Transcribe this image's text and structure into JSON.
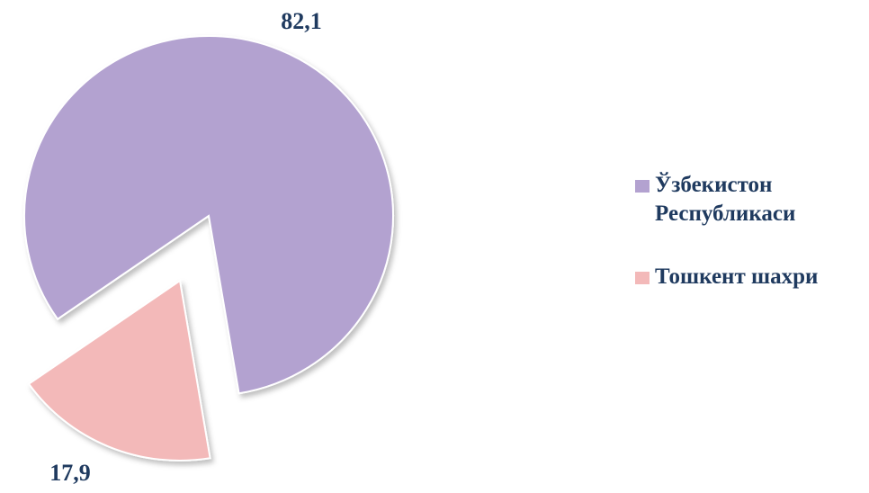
{
  "chart_data": {
    "type": "pie",
    "categories": [
      "Ўзбекистон Республикаси",
      "Тошкент шахри"
    ],
    "values": [
      82.1,
      17.9
    ],
    "value_labels": [
      "82,1",
      "17,9"
    ],
    "colors": [
      "#b3a2d0",
      "#f3b9b9"
    ],
    "legend": "right"
  }
}
